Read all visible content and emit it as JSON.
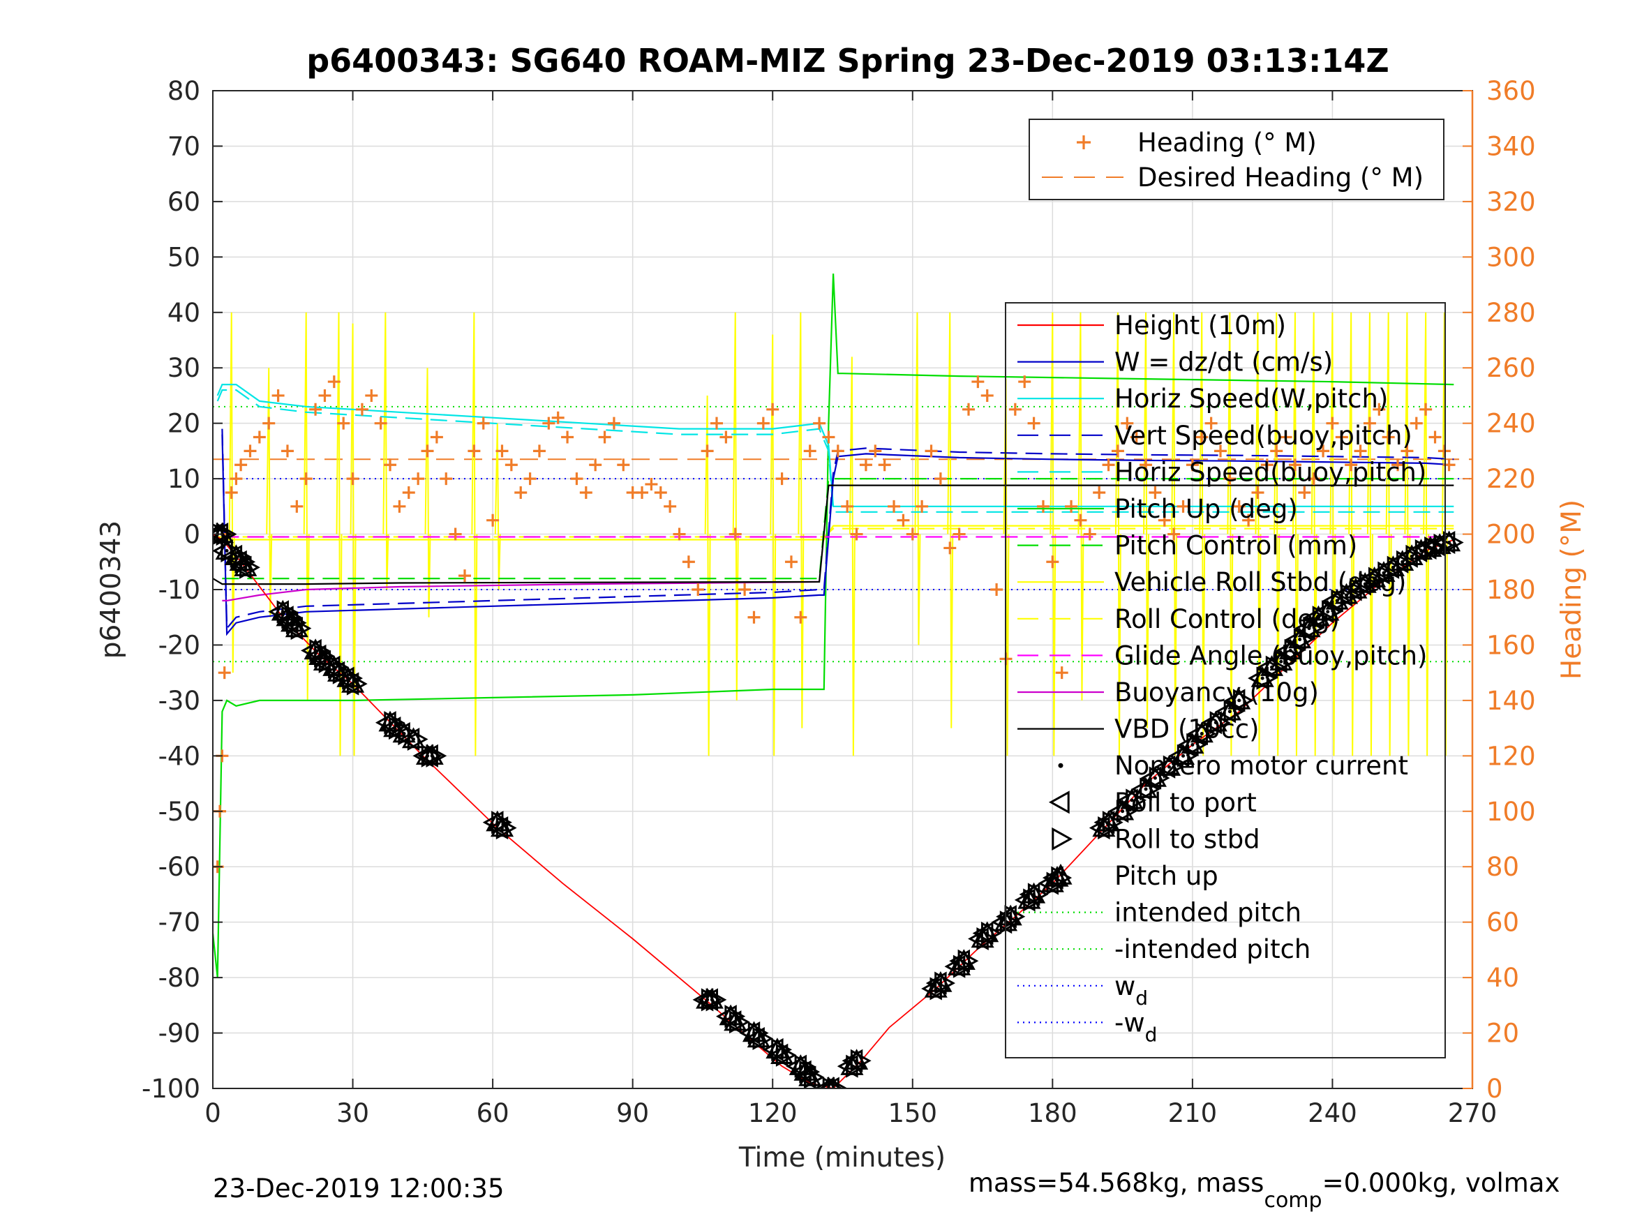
{
  "chart_data": {
    "type": "line",
    "title": "p6400343: SG640 ROAM-MIZ Spring 23-Dec-2019 03:13:14Z",
    "xlabel": "Time (minutes)",
    "ylabel_left": "p6400343",
    "ylabel_right": "Heading (°M)",
    "xlim": [
      0,
      270
    ],
    "ylim_left": [
      -100,
      80
    ],
    "ylim_right": [
      0,
      360
    ],
    "xticks": [
      "0",
      "30",
      "60",
      "90",
      "120",
      "150",
      "180",
      "210",
      "240",
      "270"
    ],
    "yticks_left": [
      "80",
      "70",
      "60",
      "50",
      "40",
      "30",
      "20",
      "10",
      "0",
      "-10",
      "-20",
      "-30",
      "-40",
      "-50",
      "-60",
      "-70",
      "-80",
      "-90",
      "-100"
    ],
    "yticks_right": [
      "360",
      "340",
      "320",
      "300",
      "280",
      "260",
      "240",
      "220",
      "200",
      "180",
      "160",
      "140",
      "120",
      "100",
      "80",
      "60",
      "40",
      "20",
      "0"
    ],
    "grid": true,
    "footer_left": "23-Dec-2019 12:00:35",
    "footer_right": {
      "part1": "mass=54.568kg, mass",
      "sub": "comp",
      "part2": "=0.000kg, volmax"
    },
    "legend_heading": [
      {
        "label": "Heading (° M)",
        "color": "#f07c28",
        "style": "plus"
      },
      {
        "label": "Desired Heading (° M)",
        "color": "#f07c28",
        "style": "dashed"
      }
    ],
    "legend_main": [
      {
        "label": "Height (10m)",
        "color": "#ff0000",
        "style": "solid"
      },
      {
        "label": "W = dz/dt (cm/s)",
        "color": "#0000c8",
        "style": "solid"
      },
      {
        "label": "Horiz Speed(W,pitch)",
        "color": "#00e5e5",
        "style": "solid"
      },
      {
        "label": "Vert Speed(buoy,pitch)",
        "color": "#0000c8",
        "style": "dashed"
      },
      {
        "label": "Horiz Speed(buoy,pitch)",
        "color": "#00e5e5",
        "style": "dashed"
      },
      {
        "label": "Pitch Up (deg)",
        "color": "#00dd00",
        "style": "solid"
      },
      {
        "label": "Pitch Control (mm)",
        "color": "#00dd00",
        "style": "dashed"
      },
      {
        "label": "Vehicle Roll Stbd (deg)",
        "color": "#ffff00",
        "style": "solid"
      },
      {
        "label": "Roll Control (deg)",
        "color": "#ffff00",
        "style": "dashed"
      },
      {
        "label": "Glide Angle (buoy,pitch)",
        "color": "#ff00ff",
        "style": "dashed"
      },
      {
        "label": "Buoyancy (10g)",
        "color": "#cc00cc",
        "style": "solid"
      },
      {
        "label": "VBD (10cc)",
        "color": "#000000",
        "style": "solid"
      },
      {
        "label": "Nonzero motor current",
        "color": "#000000",
        "style": "dot"
      },
      {
        "label": "Roll to port",
        "color": "#000000",
        "style": "tri-left"
      },
      {
        "label": "Roll to stbd",
        "color": "#000000",
        "style": "tri-right"
      },
      {
        "label": "Pitch up",
        "color": "#000000",
        "style": "tri-up"
      },
      {
        "label": "intended pitch",
        "color": "#00dd00",
        "style": "dotted"
      },
      {
        "label": "-intended pitch",
        "color": "#00dd00",
        "style": "dotted"
      },
      {
        "label": "w",
        "sub": "d",
        "color": "#0000ff",
        "style": "dotted"
      },
      {
        "label": "-w",
        "sub": "d",
        "color": "#0000ff",
        "style": "dotted"
      }
    ],
    "reference_lines": {
      "intended_pitch": 23,
      "neg_intended_pitch": -23,
      "w_d": 10,
      "neg_w_d": -10,
      "desired_heading": 227
    },
    "series": {
      "height": {
        "x": [
          0,
          2,
          6,
          15,
          23,
          30,
          45,
          61,
          75,
          90,
          107,
          115,
          122,
          128,
          133,
          139,
          145,
          155,
          165,
          172,
          180,
          190,
          200,
          210,
          220,
          230,
          240,
          250,
          260,
          266
        ],
        "y": [
          0,
          -1,
          -5,
          -15,
          -22,
          -27,
          -40,
          -53,
          -63,
          -73,
          -85,
          -91,
          -96,
          -99,
          -100,
          -95,
          -89,
          -82,
          -74,
          -69,
          -63,
          -54,
          -45,
          -38,
          -32,
          -24,
          -16,
          -9,
          -3,
          -1
        ]
      },
      "w": {
        "x": [
          2,
          3,
          5,
          10,
          20,
          40,
          60,
          80,
          100,
          120,
          130,
          131,
          133,
          134,
          140,
          160,
          180,
          200,
          220,
          240,
          260,
          266
        ],
        "y": [
          18,
          -18,
          -16,
          -15,
          -14,
          -13.5,
          -13,
          -12.5,
          -12,
          -11.5,
          -11,
          -11,
          10,
          14,
          14.5,
          13.8,
          13.5,
          13.3,
          13.2,
          13,
          12.8,
          12.5
        ]
      },
      "horiz_speed": {
        "x": [
          1,
          2,
          5,
          10,
          20,
          40,
          60,
          80,
          100,
          120,
          130,
          132,
          133,
          160,
          200,
          240,
          266
        ],
        "y": [
          25,
          27,
          27,
          24,
          23,
          22,
          21,
          20,
          19,
          19,
          20,
          16,
          5,
          5,
          5,
          5,
          5
        ]
      },
      "pitch_up": {
        "x": [
          0,
          1,
          2,
          3,
          5,
          10,
          30,
          60,
          90,
          120,
          131,
          132,
          133,
          134,
          135,
          160,
          200,
          240,
          266
        ],
        "y": [
          -72,
          -80,
          -32,
          -30,
          -31,
          -30,
          -30,
          -29.5,
          -29,
          -28,
          -28,
          20,
          47,
          29,
          29,
          28.5,
          28,
          27.5,
          27
        ]
      },
      "pitch_control": {
        "x": [
          2,
          130,
          132,
          266
        ],
        "y": [
          -8,
          -8,
          10,
          10
        ]
      },
      "roll_control": {
        "x": [
          1,
          131,
          133,
          266
        ],
        "y": [
          -0.5,
          -0.5,
          1,
          1
        ]
      },
      "glide_angle": {
        "x": [
          2,
          133,
          266
        ],
        "y": [
          -0.5,
          -0.5,
          -0.5
        ]
      },
      "buoyancy": {
        "x": [
          2,
          3,
          10,
          20,
          40,
          80,
          120,
          130
        ],
        "y": [
          -12,
          -12,
          -11,
          -10,
          -9.5,
          -9,
          -8.7,
          -8.6
        ]
      },
      "vbd": {
        "x": [
          0,
          2,
          10,
          20,
          40,
          80,
          130,
          132,
          266
        ],
        "y": [
          -8,
          -9,
          -9,
          -9,
          -8.8,
          -8.7,
          -8.6,
          8.8,
          8.8
        ]
      },
      "roll_stbd_spikes": [
        {
          "x": 4,
          "lo": -25,
          "hi": 40
        },
        {
          "x": 12,
          "lo": -15,
          "hi": 30
        },
        {
          "x": 20,
          "lo": -30,
          "hi": 40
        },
        {
          "x": 27,
          "lo": -40,
          "hi": 40
        },
        {
          "x": 30,
          "lo": -40,
          "hi": 38
        },
        {
          "x": 37,
          "lo": -10,
          "hi": 40
        },
        {
          "x": 46,
          "lo": -15,
          "hi": 30
        },
        {
          "x": 56,
          "lo": -40,
          "hi": 40
        },
        {
          "x": 61,
          "lo": -10,
          "hi": 20
        },
        {
          "x": 106,
          "lo": -40,
          "hi": 25
        },
        {
          "x": 112,
          "lo": -30,
          "hi": 40
        },
        {
          "x": 120,
          "lo": -40,
          "hi": 36
        },
        {
          "x": 126,
          "lo": -35,
          "hi": 40
        },
        {
          "x": 137,
          "lo": -40,
          "hi": 32
        },
        {
          "x": 151,
          "lo": -20,
          "hi": 40
        },
        {
          "x": 158,
          "lo": -35,
          "hi": 40
        },
        {
          "x": 170,
          "lo": -40,
          "hi": 28
        },
        {
          "x": 180,
          "lo": -40,
          "hi": 40
        },
        {
          "x": 186,
          "lo": -30,
          "hi": 40
        },
        {
          "x": 194,
          "lo": -40,
          "hi": 40
        },
        {
          "x": 200,
          "lo": -35,
          "hi": 40
        },
        {
          "x": 206,
          "lo": -40,
          "hi": 40
        },
        {
          "x": 212,
          "lo": -40,
          "hi": 40
        },
        {
          "x": 218,
          "lo": -40,
          "hi": 40
        },
        {
          "x": 224,
          "lo": -40,
          "hi": 40
        },
        {
          "x": 228,
          "lo": -40,
          "hi": 40
        },
        {
          "x": 232,
          "lo": -40,
          "hi": 40
        },
        {
          "x": 236,
          "lo": -40,
          "hi": 40
        },
        {
          "x": 240,
          "lo": -40,
          "hi": 40
        },
        {
          "x": 244,
          "lo": -40,
          "hi": 40
        },
        {
          "x": 248,
          "lo": -40,
          "hi": 40
        },
        {
          "x": 252,
          "lo": -40,
          "hi": 40
        },
        {
          "x": 256,
          "lo": -40,
          "hi": 40
        },
        {
          "x": 260,
          "lo": -40,
          "hi": 40
        },
        {
          "x": 264,
          "lo": -40,
          "hi": 40
        }
      ],
      "heading": {
        "x": [
          1,
          1.5,
          2,
          2.5,
          3,
          4,
          5,
          6,
          8,
          10,
          12,
          14,
          16,
          18,
          20,
          22,
          24,
          26,
          28,
          30,
          32,
          34,
          36,
          38,
          40,
          42,
          44,
          46,
          48,
          50,
          52,
          54,
          56,
          58,
          60,
          62,
          64,
          66,
          68,
          70,
          72,
          74,
          76,
          78,
          80,
          82,
          84,
          86,
          88,
          90,
          92,
          94,
          96,
          98,
          100,
          102,
          104,
          106,
          108,
          110,
          112,
          114,
          116,
          118,
          120,
          122,
          124,
          126,
          128,
          130,
          132,
          134,
          136,
          138,
          140,
          142,
          144,
          146,
          148,
          150,
          152,
          154,
          156,
          158,
          160,
          162,
          164,
          166,
          168,
          170,
          172,
          174,
          176,
          178,
          180,
          182,
          184,
          186,
          188,
          190,
          192,
          194,
          196,
          198,
          200,
          202,
          204,
          206,
          208,
          210,
          212,
          214,
          216,
          218,
          220,
          222,
          224,
          226,
          228,
          230,
          232,
          234,
          236,
          238,
          240,
          242,
          244,
          246,
          248,
          250,
          252,
          254,
          256,
          258,
          260,
          262,
          264,
          265
        ],
        "y": [
          80,
          100,
          120,
          150,
          200,
          215,
          220,
          225,
          230,
          235,
          240,
          250,
          230,
          210,
          220,
          245,
          250,
          255,
          240,
          220,
          245,
          250,
          240,
          225,
          210,
          215,
          220,
          230,
          235,
          220,
          200,
          185,
          230,
          240,
          205,
          230,
          225,
          215,
          220,
          230,
          240,
          242,
          235,
          220,
          215,
          225,
          235,
          240,
          225,
          215,
          215,
          218,
          215,
          210,
          200,
          190,
          180,
          230,
          240,
          235,
          200,
          180,
          170,
          240,
          245,
          220,
          190,
          170,
          230,
          240,
          235,
          230,
          210,
          200,
          225,
          230,
          225,
          210,
          205,
          200,
          210,
          230,
          220,
          195,
          200,
          245,
          255,
          250,
          180,
          155,
          245,
          255,
          240,
          210,
          190,
          150,
          210,
          205,
          200,
          215,
          225,
          230,
          240,
          235,
          225,
          215,
          205,
          200,
          210,
          225,
          235,
          240,
          230,
          220,
          210,
          205,
          215,
          225,
          230,
          235,
          225,
          215,
          220,
          230,
          240,
          235,
          225,
          230,
          240,
          245,
          235,
          225,
          230,
          240,
          245,
          235,
          230,
          225
        ]
      },
      "markers": {
        "x": [
          1,
          2,
          3,
          5,
          6,
          7,
          15,
          16,
          17,
          18,
          22,
          23,
          24,
          26,
          27,
          29,
          30,
          38,
          39,
          41,
          43,
          46,
          47,
          61,
          62,
          106,
          107,
          111,
          112,
          116,
          117,
          121,
          122,
          126,
          127,
          128,
          132,
          133,
          137,
          138,
          155,
          156,
          160,
          161,
          165,
          166,
          170,
          171,
          175,
          176,
          180,
          181,
          191,
          192,
          195,
          197,
          200,
          202,
          205,
          208,
          210,
          212,
          215,
          218,
          220,
          225,
          227,
          229,
          231,
          233,
          235,
          237,
          239,
          241,
          243,
          245,
          247,
          249,
          251,
          253,
          255,
          257,
          259,
          261,
          263,
          265
        ],
        "y": [
          0,
          0,
          -3,
          -4,
          -5,
          -6,
          -14,
          -15,
          -16,
          -17,
          -21,
          -22,
          -23,
          -24,
          -25,
          -26,
          -27,
          -34,
          -35,
          -36,
          -37,
          -40,
          -40,
          -52,
          -53,
          -84,
          -84,
          -87,
          -88,
          -90,
          -91,
          -93,
          -94,
          -96,
          -97,
          -98,
          -100,
          -100,
          -96,
          -95,
          -82,
          -81,
          -78,
          -77,
          -73,
          -72,
          -70,
          -69,
          -66,
          -65,
          -63,
          -62,
          -53,
          -52,
          -50,
          -48,
          -46,
          -44,
          -42,
          -40,
          -38,
          -36,
          -34,
          -32,
          -30,
          -26,
          -24,
          -23,
          -21,
          -19,
          -17,
          -15,
          -14,
          -12,
          -11,
          -10,
          -9,
          -8,
          -7,
          -6,
          -5,
          -4,
          -3,
          -2.5,
          -2,
          -1.5
        ]
      }
    }
  }
}
